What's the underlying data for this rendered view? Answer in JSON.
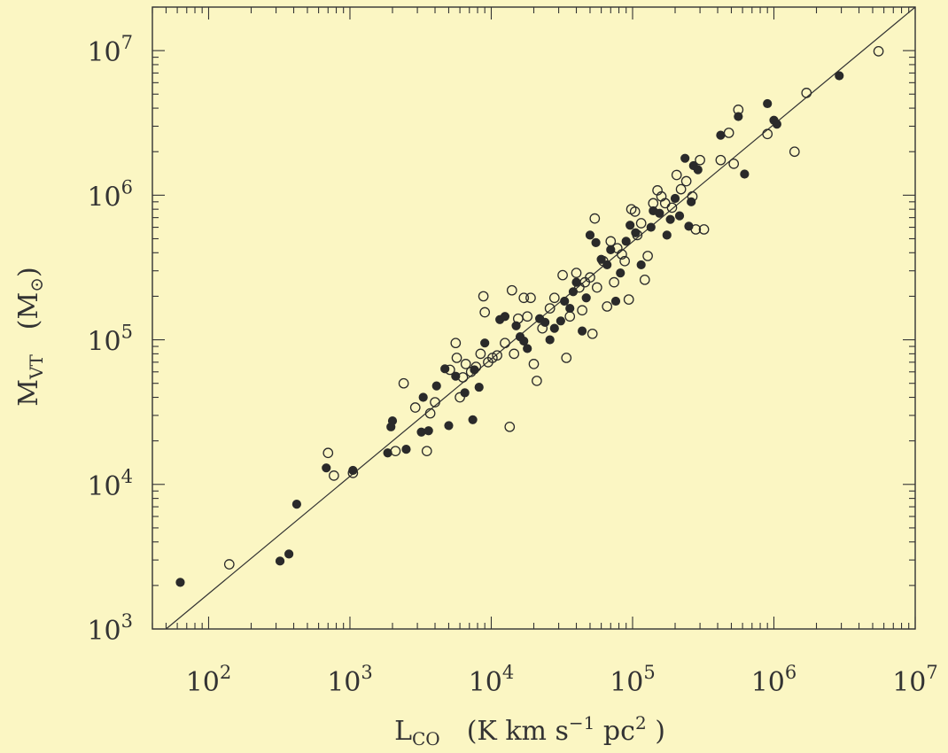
{
  "chart_data": {
    "type": "scatter",
    "xscale": "log",
    "yscale": "log",
    "xlim": [
      40,
      10000000
    ],
    "ylim": [
      1000,
      20000000
    ],
    "xlabel": {
      "main": "L",
      "sub": "CO",
      "unit_open": "(K km s",
      "unit_sup1": "−1",
      "unit_mid": " pc",
      "unit_sup2": "2",
      "unit_close": " )"
    },
    "ylabel": {
      "main": "M",
      "sub": "VT",
      "unit": "(M",
      "unit_close": ")"
    },
    "x_ticks": [
      {
        "base": "10",
        "exp": "2",
        "value": 100
      },
      {
        "base": "10",
        "exp": "3",
        "value": 1000
      },
      {
        "base": "10",
        "exp": "4",
        "value": 10000
      },
      {
        "base": "10",
        "exp": "5",
        "value": 100000
      },
      {
        "base": "10",
        "exp": "6",
        "value": 1000000
      },
      {
        "base": "10",
        "exp": "7",
        "value": 10000000
      }
    ],
    "y_ticks": [
      {
        "base": "10",
        "exp": "3",
        "value": 1000
      },
      {
        "base": "10",
        "exp": "4",
        "value": 10000
      },
      {
        "base": "10",
        "exp": "5",
        "value": 100000
      },
      {
        "base": "10",
        "exp": "6",
        "value": 1000000
      },
      {
        "base": "10",
        "exp": "7",
        "value": 10000000
      }
    ],
    "fit_line": {
      "x": [
        50,
        10000000
      ],
      "y": [
        1000,
        20000000
      ]
    },
    "series": [
      {
        "marker": "filled",
        "points": [
          [
            63,
            2100
          ],
          [
            320,
            2950
          ],
          [
            370,
            3300
          ],
          [
            420,
            7300
          ],
          [
            680,
            13000
          ],
          [
            1050,
            12500
          ],
          [
            1850,
            16500
          ],
          [
            1950,
            25000
          ],
          [
            2000,
            27500
          ],
          [
            2500,
            17500
          ],
          [
            3200,
            23000
          ],
          [
            3300,
            40000
          ],
          [
            3600,
            23500
          ],
          [
            4100,
            48000
          ],
          [
            4700,
            63000
          ],
          [
            5000,
            25500
          ],
          [
            5600,
            56000
          ],
          [
            6500,
            43000
          ],
          [
            7400,
            28000
          ],
          [
            7600,
            62000
          ],
          [
            8200,
            47000
          ],
          [
            9000,
            95000
          ],
          [
            11500,
            138000
          ],
          [
            12500,
            145000
          ],
          [
            15000,
            125000
          ],
          [
            16000,
            105000
          ],
          [
            17000,
            98000
          ],
          [
            18000,
            87000
          ],
          [
            22000,
            140000
          ],
          [
            24000,
            132000
          ],
          [
            26000,
            100000
          ],
          [
            28000,
            120000
          ],
          [
            31000,
            135000
          ],
          [
            33000,
            185000
          ],
          [
            36000,
            165000
          ],
          [
            38000,
            215000
          ],
          [
            40000,
            250000
          ],
          [
            44000,
            115000
          ],
          [
            47000,
            195000
          ],
          [
            50000,
            530000
          ],
          [
            55000,
            470000
          ],
          [
            60000,
            360000
          ],
          [
            66000,
            330000
          ],
          [
            70000,
            420000
          ],
          [
            76000,
            185000
          ],
          [
            82000,
            290000
          ],
          [
            90000,
            480000
          ],
          [
            96000,
            620000
          ],
          [
            105000,
            550000
          ],
          [
            115000,
            330000
          ],
          [
            135000,
            600000
          ],
          [
            140000,
            780000
          ],
          [
            155000,
            750000
          ],
          [
            175000,
            530000
          ],
          [
            185000,
            680000
          ],
          [
            200000,
            950000
          ],
          [
            215000,
            720000
          ],
          [
            235000,
            1800000
          ],
          [
            250000,
            610000
          ],
          [
            260000,
            900000
          ],
          [
            270000,
            1600000
          ],
          [
            290000,
            1500000
          ],
          [
            420000,
            2600000
          ],
          [
            560000,
            3500000
          ],
          [
            620000,
            1400000
          ],
          [
            900000,
            4300000
          ],
          [
            1000000,
            3300000
          ],
          [
            1050000,
            3100000
          ],
          [
            2900000,
            6700000
          ]
        ]
      },
      {
        "marker": "open",
        "points": [
          [
            140,
            2800
          ],
          [
            700,
            16500
          ],
          [
            770,
            11500
          ],
          [
            1050,
            12000
          ],
          [
            2100,
            17000
          ],
          [
            2400,
            50000
          ],
          [
            2900,
            34000
          ],
          [
            3500,
            17000
          ],
          [
            3700,
            31000
          ],
          [
            4000,
            37000
          ],
          [
            5100,
            62000
          ],
          [
            5600,
            95000
          ],
          [
            5700,
            75000
          ],
          [
            6000,
            40000
          ],
          [
            6300,
            55000
          ],
          [
            6600,
            68000
          ],
          [
            7200,
            60000
          ],
          [
            7800,
            65000
          ],
          [
            8400,
            80000
          ],
          [
            8800,
            200000
          ],
          [
            9000,
            155000
          ],
          [
            9500,
            70000
          ],
          [
            10200,
            75000
          ],
          [
            11000,
            78000
          ],
          [
            12500,
            95000
          ],
          [
            13500,
            25000
          ],
          [
            14000,
            220000
          ],
          [
            14500,
            80000
          ],
          [
            15500,
            140000
          ],
          [
            17000,
            195000
          ],
          [
            18000,
            145000
          ],
          [
            19000,
            195000
          ],
          [
            20000,
            68000
          ],
          [
            21000,
            52000
          ],
          [
            23000,
            120000
          ],
          [
            26000,
            165000
          ],
          [
            28000,
            195000
          ],
          [
            32000,
            280000
          ],
          [
            34000,
            75000
          ],
          [
            36000,
            145000
          ],
          [
            40000,
            290000
          ],
          [
            42000,
            230000
          ],
          [
            44000,
            160000
          ],
          [
            46000,
            250000
          ],
          [
            50000,
            270000
          ],
          [
            52000,
            110000
          ],
          [
            54000,
            690000
          ],
          [
            56000,
            230000
          ],
          [
            62000,
            350000
          ],
          [
            66000,
            170000
          ],
          [
            70000,
            480000
          ],
          [
            74000,
            250000
          ],
          [
            78000,
            430000
          ],
          [
            84000,
            390000
          ],
          [
            88000,
            350000
          ],
          [
            94000,
            190000
          ],
          [
            98000,
            800000
          ],
          [
            104000,
            770000
          ],
          [
            108000,
            530000
          ],
          [
            115000,
            640000
          ],
          [
            122000,
            260000
          ],
          [
            128000,
            380000
          ],
          [
            140000,
            880000
          ],
          [
            150000,
            1080000
          ],
          [
            160000,
            980000
          ],
          [
            170000,
            880000
          ],
          [
            190000,
            820000
          ],
          [
            205000,
            1380000
          ],
          [
            220000,
            1100000
          ],
          [
            240000,
            1250000
          ],
          [
            265000,
            980000
          ],
          [
            280000,
            580000
          ],
          [
            300000,
            1750000
          ],
          [
            320000,
            580000
          ],
          [
            420000,
            1750000
          ],
          [
            480000,
            2700000
          ],
          [
            520000,
            1650000
          ],
          [
            560000,
            3900000
          ],
          [
            900000,
            2650000
          ],
          [
            1400000,
            2000000
          ],
          [
            1700000,
            5100000
          ],
          [
            5500000,
            9900000
          ]
        ]
      }
    ]
  }
}
